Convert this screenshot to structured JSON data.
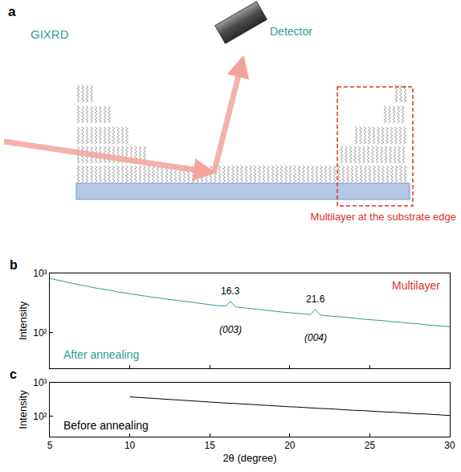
{
  "panel_a": {
    "label": "a",
    "technique": "GIXRD",
    "detector": "Detector",
    "box_label": "Multilayer at the substrate edge"
  },
  "chart_data": [
    {
      "label": "b",
      "type": "line",
      "color": "#2a9d9a",
      "x": [
        5,
        5.5,
        6,
        6.5,
        7,
        7.5,
        8,
        8.5,
        9,
        9.5,
        10,
        10.5,
        11,
        11.5,
        12,
        12.5,
        13,
        13.5,
        14,
        14.5,
        15,
        15.5,
        16,
        16.3,
        16.6,
        17,
        17.5,
        18,
        18.5,
        19,
        19.5,
        20,
        20.5,
        21,
        21.3,
        21.6,
        21.9,
        22.5,
        23,
        23.5,
        24,
        24.5,
        25,
        25.5,
        26,
        26.5,
        27,
        27.5,
        28,
        28.5,
        29,
        29.5,
        30
      ],
      "values": [
        820,
        765,
        705,
        672,
        628,
        595,
        556,
        533,
        497,
        474,
        452,
        428,
        412,
        393,
        377,
        358,
        347,
        329,
        320,
        303,
        296,
        284,
        279,
        335,
        271,
        263,
        254,
        247,
        237,
        231,
        222,
        216,
        209,
        204,
        201,
        248,
        197,
        190,
        186,
        179,
        176,
        169,
        166,
        160,
        157,
        151,
        149,
        143,
        141,
        135,
        133,
        128,
        126
      ],
      "log": "y",
      "xlim": [
        5,
        30
      ],
      "xticks": [
        5,
        10,
        15,
        20,
        25,
        30
      ],
      "ylim": [
        25,
        1000
      ],
      "yticks": [
        {
          "value": 100,
          "label": "10²"
        },
        {
          "value": 1000,
          "label": "10³"
        }
      ],
      "ylabel": "Intensity",
      "tick_labels": "y",
      "annotations": [
        {
          "text": "Multilayer",
          "color": "#d9322b"
        },
        {
          "text": "After annealing",
          "color": "#2a9d9a"
        }
      ],
      "peaks": [
        {
          "x": 16.3,
          "hkl": "(003)"
        },
        {
          "x": 21.6,
          "hkl": "(004)"
        }
      ]
    },
    {
      "label": "c",
      "type": "line",
      "color": "#000000",
      "x": [
        10,
        10.5,
        11,
        11.5,
        12,
        12.5,
        13,
        13.5,
        14,
        14.5,
        15,
        15.5,
        16,
        16.5,
        17,
        17.5,
        18,
        18.5,
        19,
        19.5,
        20,
        20.5,
        21,
        21.5,
        22,
        22.5,
        23,
        23.5,
        24,
        24.5,
        25,
        25.5,
        26,
        26.5,
        27,
        27.5,
        28,
        28.5,
        29,
        29.5,
        30
      ],
      "values": [
        380,
        366,
        349,
        341,
        324,
        316,
        304,
        296,
        284,
        276,
        267,
        259,
        249,
        243,
        234,
        229,
        219,
        214,
        206,
        201,
        193,
        189,
        181,
        178,
        171,
        168,
        161,
        158,
        151,
        149,
        143,
        141,
        135,
        133,
        127,
        125,
        119,
        118,
        112,
        110,
        106
      ],
      "log": "y",
      "xlim": [
        5,
        30
      ],
      "xticks": [
        5,
        10,
        15,
        20,
        25,
        30
      ],
      "ylim": [
        25,
        1000
      ],
      "yticks": [
        {
          "value": 100,
          "label": "10²"
        },
        {
          "value": 1000,
          "label": "10³"
        }
      ],
      "xlabel": "2θ (degree)",
      "ylabel": "Intensity",
      "annotations": [
        {
          "text": "Before annealing",
          "color": "#000000"
        }
      ]
    }
  ]
}
